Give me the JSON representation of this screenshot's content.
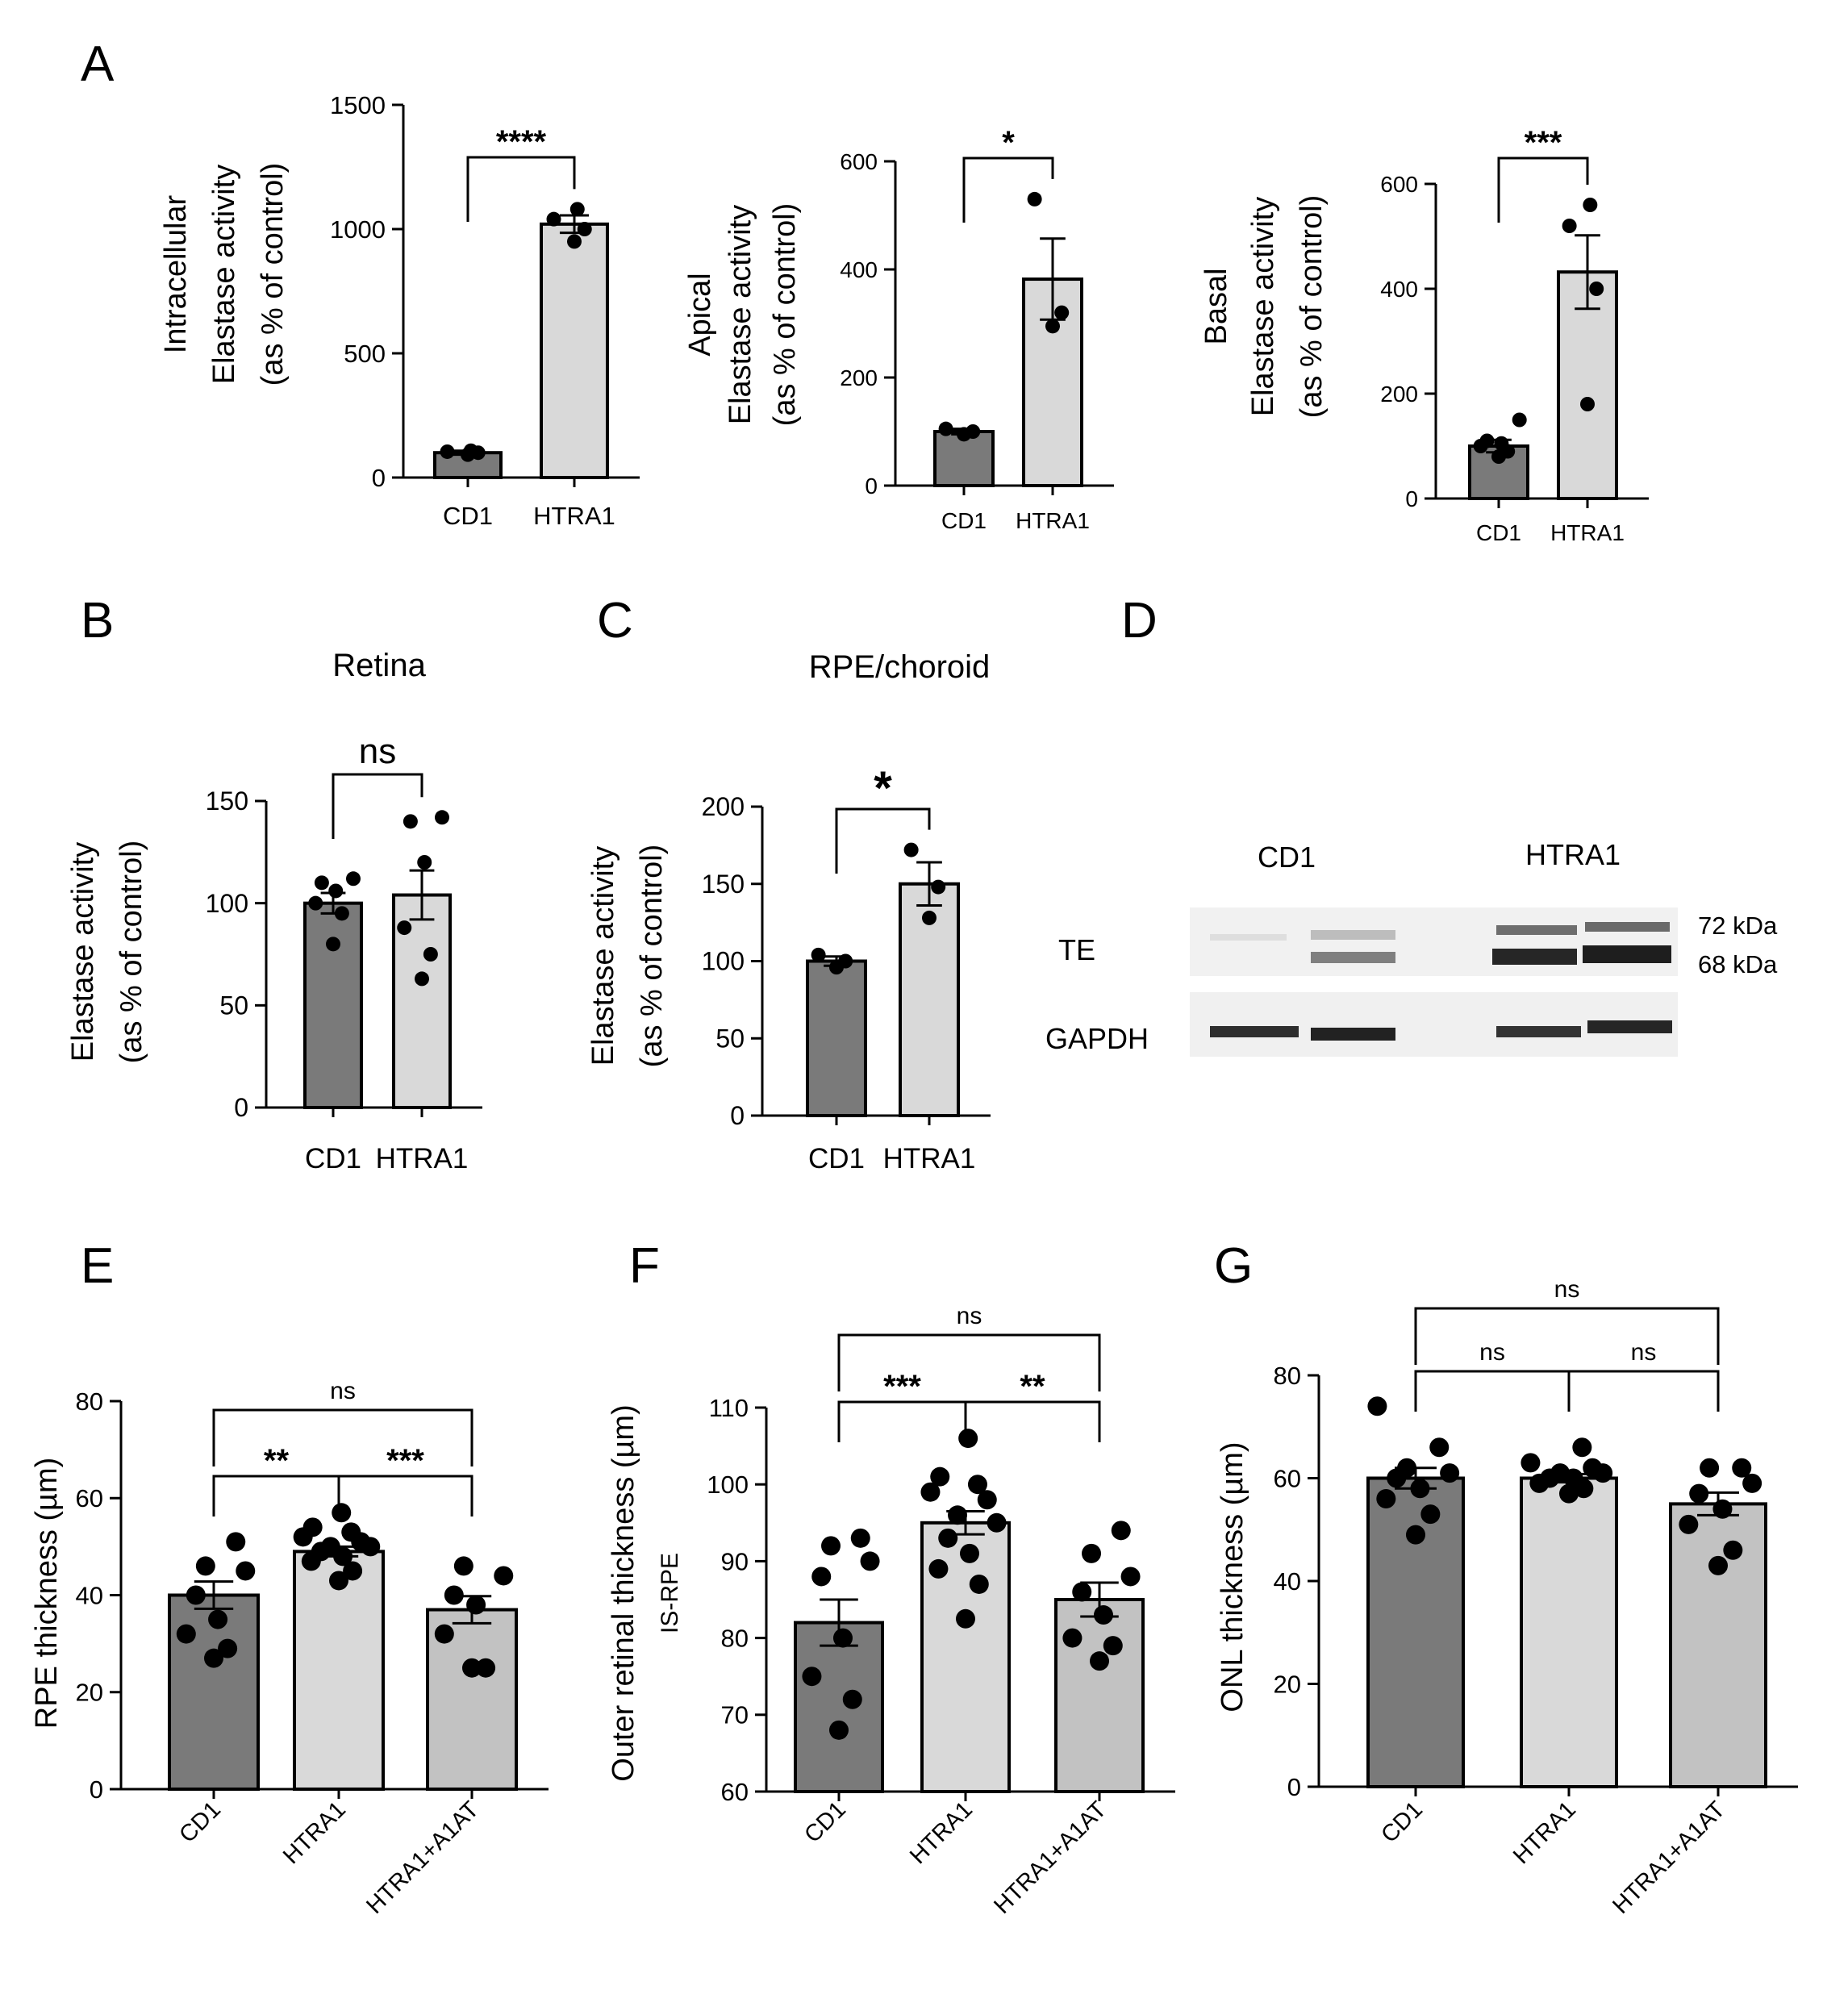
{
  "panel_letters": [
    "A",
    "B",
    "C",
    "D",
    "E",
    "F",
    "G"
  ],
  "colors": {
    "dark_bar": "#7a7a7a",
    "light_bar": "#d9d9d9",
    "mid_bar": "#c2c2c2",
    "axis": "#000000",
    "points": "#000000"
  },
  "chart_data": [
    {
      "id": "A1",
      "panel": "A",
      "type": "bar",
      "ylabel": [
        "Intracellular",
        "Elastase activity",
        "(as % of control)"
      ],
      "ylim": [
        0,
        1500
      ],
      "yticks": [
        0,
        500,
        1000,
        1500
      ],
      "categories": [
        "CD1",
        "HTRA1"
      ],
      "values": [
        100,
        1020
      ],
      "sem": [
        8,
        35
      ],
      "points": [
        [
          92,
          100,
          104,
          108
        ],
        [
          950,
          1000,
          1040,
          1080
        ]
      ],
      "significance": [
        {
          "from": 0,
          "to": 1,
          "label": "****"
        }
      ]
    },
    {
      "id": "A2",
      "panel": "A",
      "type": "bar",
      "ylabel": [
        "Apical",
        "Elastase activity",
        "(as % of control)"
      ],
      "ylim": [
        0,
        600
      ],
      "yticks": [
        0,
        200,
        400,
        600
      ],
      "categories": [
        "CD1",
        "HTRA1"
      ],
      "values": [
        100,
        382
      ],
      "sem": [
        5,
        75
      ],
      "points": [
        [
          95,
          100,
          105
        ],
        [
          295,
          320,
          530
        ]
      ],
      "significance": [
        {
          "from": 0,
          "to": 1,
          "label": "*"
        }
      ]
    },
    {
      "id": "A3",
      "panel": "A",
      "type": "bar",
      "ylabel": [
        "Basal",
        "Elastase activity",
        "(as % of control)"
      ],
      "ylim": [
        0,
        600
      ],
      "yticks": [
        0,
        200,
        400,
        600
      ],
      "categories": [
        "CD1",
        "HTRA1"
      ],
      "values": [
        100,
        432
      ],
      "sem": [
        12,
        70
      ],
      "points": [
        [
          80,
          90,
          100,
          105,
          110,
          150
        ],
        [
          180,
          400,
          520,
          560
        ]
      ],
      "significance": [
        {
          "from": 0,
          "to": 1,
          "label": "***"
        }
      ]
    },
    {
      "id": "B",
      "panel": "B",
      "type": "bar",
      "title": "Retina",
      "ylabel": [
        "Elastase activity",
        "(as % of control)"
      ],
      "ylim": [
        0,
        150
      ],
      "yticks": [
        0,
        50,
        100,
        150
      ],
      "categories": [
        "CD1",
        "HTRA1"
      ],
      "values": [
        100,
        104
      ],
      "sem": [
        5,
        12
      ],
      "points": [
        [
          80,
          95,
          100,
          106,
          110,
          112
        ],
        [
          63,
          75,
          88,
          120,
          140,
          142
        ]
      ],
      "significance": [
        {
          "from": 0,
          "to": 1,
          "label": "ns"
        }
      ]
    },
    {
      "id": "C",
      "panel": "C",
      "type": "bar",
      "title": "RPE/choroid",
      "ylabel": [
        "Elastase activity",
        "(as % of control)"
      ],
      "ylim": [
        0,
        200
      ],
      "yticks": [
        0,
        50,
        100,
        150,
        200
      ],
      "categories": [
        "CD1",
        "HTRA1"
      ],
      "values": [
        100,
        150
      ],
      "sem": [
        3,
        14
      ],
      "points": [
        [
          96,
          100,
          104
        ],
        [
          128,
          148,
          172
        ]
      ],
      "significance": [
        {
          "from": 0,
          "to": 1,
          "label": "*"
        }
      ]
    },
    {
      "id": "E",
      "panel": "E",
      "type": "bar",
      "ylabel": [
        "RPE thickness (µm)"
      ],
      "ylim": [
        0,
        80
      ],
      "yticks": [
        0,
        20,
        40,
        60,
        80
      ],
      "categories": [
        "CD1",
        "HTRA1",
        "HTRA1+A1AT"
      ],
      "values": [
        40,
        49,
        37
      ],
      "sem": [
        2.8,
        1.0,
        2.8
      ],
      "points": [
        [
          27,
          29,
          32,
          35,
          40,
          45,
          46,
          51
        ],
        [
          43,
          45,
          47,
          48,
          49,
          50,
          50,
          51,
          52,
          53,
          54,
          57
        ],
        [
          25,
          25,
          32,
          38,
          40,
          44,
          46
        ]
      ],
      "significance": [
        {
          "from": 0,
          "to": 1,
          "label": "**"
        },
        {
          "from": 1,
          "to": 2,
          "label": "***"
        },
        {
          "from": 0,
          "to": 2,
          "label": "ns"
        }
      ]
    },
    {
      "id": "F",
      "panel": "F",
      "type": "bar",
      "ylabel": [
        "Outer retinal thickness (µm)",
        "IS-RPE"
      ],
      "ylim": [
        60,
        110
      ],
      "yticks": [
        60,
        70,
        80,
        90,
        100,
        110
      ],
      "categories": [
        "CD1",
        "HTRA1",
        "HTRA1+A1AT"
      ],
      "values": [
        82,
        95,
        85
      ],
      "sem": [
        3.0,
        1.5,
        2.2
      ],
      "points": [
        [
          68,
          72,
          75,
          80,
          88,
          90,
          92,
          93
        ],
        [
          82.5,
          87,
          89,
          91,
          93,
          95,
          96,
          98,
          99,
          100,
          101,
          106
        ],
        [
          77,
          79,
          80,
          83,
          86,
          88,
          91,
          94
        ]
      ],
      "significance": [
        {
          "from": 0,
          "to": 1,
          "label": "***"
        },
        {
          "from": 1,
          "to": 2,
          "label": "**"
        },
        {
          "from": 0,
          "to": 2,
          "label": "ns"
        }
      ]
    },
    {
      "id": "G",
      "panel": "G",
      "type": "bar",
      "ylabel": [
        "ONL thickness (µm)"
      ],
      "ylim": [
        0,
        80
      ],
      "yticks": [
        0,
        20,
        40,
        60,
        80
      ],
      "categories": [
        "CD1",
        "HTRA1",
        "HTRA1+A1AT"
      ],
      "values": [
        60,
        60,
        55
      ],
      "sem": [
        2.0,
        0.8,
        2.2
      ],
      "points": [
        [
          49,
          53,
          56,
          58,
          60,
          61,
          62,
          66,
          74
        ],
        [
          57,
          58,
          59,
          60,
          60,
          61,
          61,
          62,
          63,
          66
        ],
        [
          43,
          46,
          51,
          54,
          57,
          59,
          62,
          62
        ]
      ],
      "significance": [
        {
          "from": 0,
          "to": 1,
          "label": "ns"
        },
        {
          "from": 1,
          "to": 2,
          "label": "ns"
        },
        {
          "from": 0,
          "to": 2,
          "label": "ns"
        }
      ]
    }
  ],
  "blot": {
    "group_labels": [
      "CD1",
      "HTRA1"
    ],
    "row_labels": [
      "TE",
      "GAPDH"
    ],
    "size_markers": [
      "72 kDa",
      "68 kDa"
    ]
  }
}
